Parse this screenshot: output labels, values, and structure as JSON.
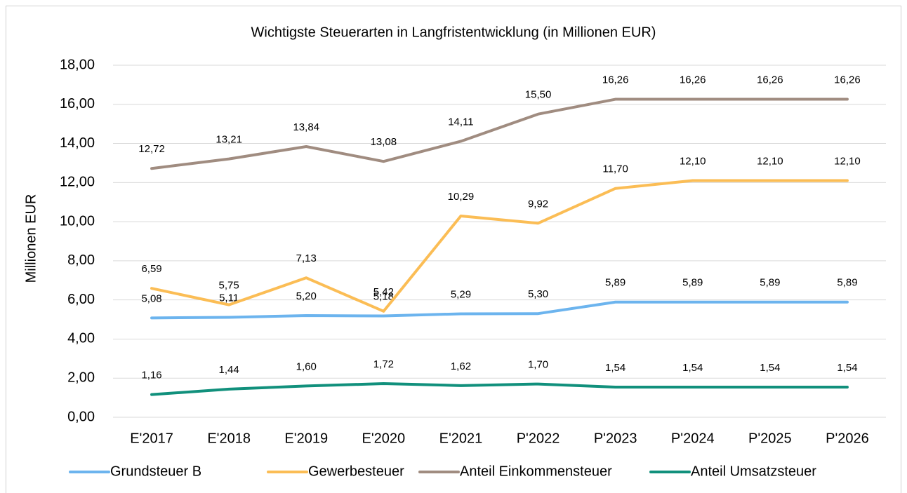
{
  "chart_data": {
    "type": "line",
    "title": "Wichtigste Steuerarten in Langfristentwicklung (in Millionen EUR)",
    "y_label": "Millionen EUR",
    "categories": [
      "E'2017",
      "E'2018",
      "E'2019",
      "E'2020",
      "E'2021",
      "P'2022",
      "P'2023",
      "P'2024",
      "P'2025",
      "P'2026"
    ],
    "ylim": [
      0,
      18
    ],
    "yticks": [
      {
        "value": 0,
        "label": "0,00"
      },
      {
        "value": 2,
        "label": "2,00"
      },
      {
        "value": 4,
        "label": "4,00"
      },
      {
        "value": 6,
        "label": "6,00"
      },
      {
        "value": 8,
        "label": "8,00"
      },
      {
        "value": 10,
        "label": "10,00"
      },
      {
        "value": 12,
        "label": "12,00"
      },
      {
        "value": 14,
        "label": "14,00"
      },
      {
        "value": 16,
        "label": "16,00"
      },
      {
        "value": 18,
        "label": "18,00"
      }
    ],
    "grid": true,
    "legend": "bottom",
    "series": [
      {
        "name": "Grundsteuer B",
        "color": "#6cb4ee",
        "values": [
          5.08,
          5.11,
          5.2,
          5.18,
          5.29,
          5.3,
          5.89,
          5.89,
          5.89,
          5.89
        ],
        "value_labels": [
          "5,08",
          "5,11",
          "5,20",
          "5,18",
          "5,29",
          "5,30",
          "5,89",
          "5,89",
          "5,89",
          "5,89"
        ]
      },
      {
        "name": "Gewerbesteuer",
        "color": "#fbbd55",
        "values": [
          6.59,
          5.75,
          7.13,
          5.42,
          10.29,
          9.92,
          11.7,
          12.1,
          12.1,
          12.1
        ],
        "value_labels": [
          "6,59",
          "5,75",
          "7,13",
          "5,42",
          "10,29",
          "9,92",
          "11,70",
          "12,10",
          "12,10",
          "12,10"
        ]
      },
      {
        "name": "Anteil Einkommensteuer",
        "color": "#a08c80",
        "values": [
          12.72,
          13.21,
          13.84,
          13.08,
          14.11,
          15.5,
          16.26,
          16.26,
          16.26,
          16.26
        ],
        "value_labels": [
          "12,72",
          "13,21",
          "13,84",
          "13,08",
          "14,11",
          "15,50",
          "16,26",
          "16,26",
          "16,26",
          "16,26"
        ]
      },
      {
        "name": "Anteil Umsatzsteuer",
        "color": "#11907c",
        "values": [
          1.16,
          1.44,
          1.6,
          1.72,
          1.62,
          1.7,
          1.54,
          1.54,
          1.54,
          1.54
        ],
        "value_labels": [
          "1,16",
          "1,44",
          "1,60",
          "1,72",
          "1,62",
          "1,70",
          "1,54",
          "1,54",
          "1,54",
          "1,54"
        ]
      }
    ]
  }
}
